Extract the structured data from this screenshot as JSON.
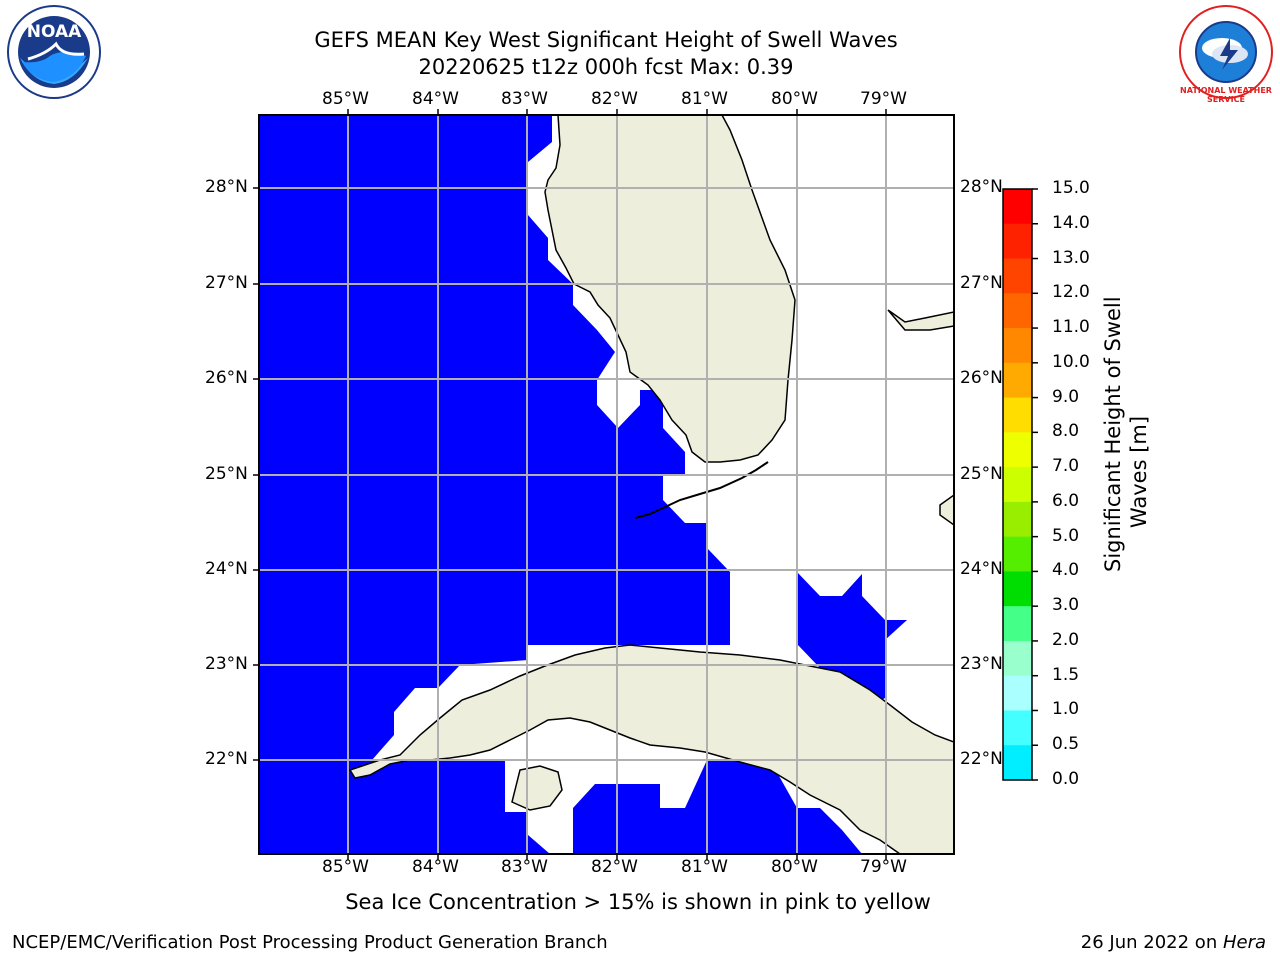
{
  "header": {
    "title_line1": "GEFS MEAN Key West Significant Height of Swell Waves",
    "title_line2": "20220625 t12z 000h fcst   Max: 0.39"
  },
  "logos": {
    "left": {
      "name": "noaa-logo",
      "text": "NOAA"
    },
    "right": {
      "name": "nws-logo",
      "text": "NATIONAL WEATHER SERVICE"
    }
  },
  "map": {
    "lon_ticks": [
      "85°W",
      "84°W",
      "83°W",
      "82°W",
      "81°W",
      "80°W",
      "79°W"
    ],
    "lat_ticks": [
      "28°N",
      "27°N",
      "26°N",
      "25°N",
      "24°N",
      "23°N",
      "22°N"
    ],
    "ocean_color": "#0000ff",
    "land_color": "#eeeedd",
    "grid_color": "#b0b0b0"
  },
  "colorbar": {
    "label_line1": "Significant Height of Swell",
    "label_line2": "Waves [m]",
    "ticks": [
      "15.0",
      "14.0",
      "13.0",
      "12.0",
      "11.0",
      "10.0",
      "9.0",
      "8.0",
      "7.0",
      "6.0",
      "5.0",
      "4.0",
      "3.0",
      "2.0",
      "1.5",
      "1.0",
      "0.5",
      "0.0"
    ],
    "colors_top_to_bottom": [
      "#ff0000",
      "#ff2200",
      "#ff4400",
      "#ff6600",
      "#ff8800",
      "#ffaa00",
      "#ffdd00",
      "#eeff00",
      "#ccff00",
      "#99ee00",
      "#55ee00",
      "#00dd00",
      "#44ff88",
      "#99ffcc",
      "#aaffff",
      "#44ffff",
      "#00eeff",
      "#0088ff",
      "#0000ff"
    ]
  },
  "note": "Sea Ice Concentration > 15% is shown in pink to yellow",
  "footer": {
    "left": "NCEP/EMC/Verification Post Processing Product Generation Branch",
    "right_date": "26 Jun 2022 on ",
    "right_host": "Hera"
  }
}
